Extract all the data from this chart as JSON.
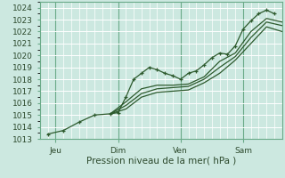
{
  "xlabel": "Pression niveau de la mer( hPa )",
  "background_color": "#cce8e0",
  "grid_color_major": "#ffffff",
  "grid_color_minor": "#ddf0eb",
  "line_color": "#2d5a2d",
  "ylim": [
    1013,
    1024.5
  ],
  "xlim": [
    0,
    93
  ],
  "xtick_positions": [
    6,
    30,
    54,
    78
  ],
  "xtick_labels": [
    "Jeu",
    "Dim",
    "Ven",
    "Sam"
  ],
  "ytick_positions": [
    1013,
    1014,
    1015,
    1016,
    1017,
    1018,
    1019,
    1020,
    1021,
    1022,
    1023,
    1024
  ],
  "vlines": [
    6,
    30,
    54,
    78
  ],
  "lines": [
    {
      "x": [
        3,
        9,
        15,
        21,
        27,
        30,
        33,
        36,
        39,
        42,
        45,
        48,
        51,
        54,
        57,
        60,
        63,
        66,
        69,
        72,
        75,
        78,
        81,
        84,
        87,
        90
      ],
      "y": [
        1013.4,
        1013.7,
        1014.4,
        1015.0,
        1015.1,
        1015.2,
        1016.5,
        1018.0,
        1018.5,
        1019.0,
        1018.8,
        1018.5,
        1018.3,
        1018.0,
        1018.5,
        1018.7,
        1019.2,
        1019.8,
        1020.2,
        1020.1,
        1020.8,
        1022.2,
        1022.9,
        1023.5,
        1023.8,
        1023.5
      ],
      "marker": "+"
    },
    {
      "x": [
        27,
        33,
        39,
        45,
        51,
        57,
        63,
        69,
        75,
        81,
        87,
        93
      ],
      "y": [
        1015.1,
        1016.1,
        1017.2,
        1017.5,
        1017.5,
        1017.6,
        1018.2,
        1019.5,
        1020.2,
        1022.0,
        1023.1,
        1022.8
      ],
      "marker": null
    },
    {
      "x": [
        27,
        33,
        39,
        45,
        51,
        57,
        63,
        69,
        75,
        81,
        87,
        93
      ],
      "y": [
        1015.1,
        1015.8,
        1016.8,
        1017.2,
        1017.3,
        1017.4,
        1018.0,
        1019.0,
        1019.9,
        1021.5,
        1022.8,
        1022.5
      ],
      "marker": null
    },
    {
      "x": [
        27,
        33,
        39,
        45,
        51,
        57,
        63,
        69,
        75,
        81,
        87,
        93
      ],
      "y": [
        1015.1,
        1015.5,
        1016.5,
        1016.9,
        1017.0,
        1017.1,
        1017.7,
        1018.5,
        1019.6,
        1021.0,
        1022.4,
        1022.0
      ],
      "marker": null
    }
  ],
  "marker_size": 3.5,
  "linewidth": 0.9,
  "font_size": 6.5,
  "xlabel_fontsize": 7.5
}
